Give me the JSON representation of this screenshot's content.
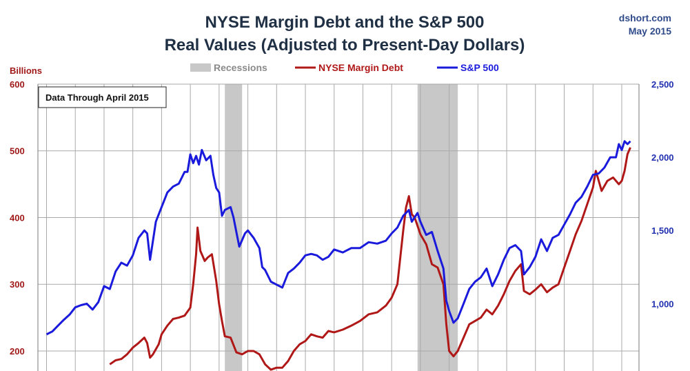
{
  "header": {
    "title_line1": "NYSE Margin Debt and the S&P 500",
    "title_line2": "Real Values (Adjusted to Present-Day Dollars)",
    "source": "dshort.com",
    "date": "May 2015"
  },
  "note": "Data Through April 2015",
  "colors": {
    "margin_debt": "#b01818",
    "sp500": "#1a1adc",
    "recession": "#c8c8c8",
    "grid": "#a9a9a9"
  },
  "chart_data": {
    "type": "line",
    "xlim": [
      1994.7,
      2015.6
    ],
    "left_axis": {
      "label": "Billions",
      "ylim": [
        170,
        600
      ],
      "ticks": [
        "200",
        "300",
        "400",
        "500",
        "600"
      ],
      "tick_values": [
        200,
        300,
        400,
        500,
        600
      ]
    },
    "right_axis": {
      "ylim": [
        540,
        2500
      ],
      "ticks": [
        "1,000",
        "1,500",
        "2,000",
        "2,500"
      ],
      "tick_values": [
        1000,
        1500,
        2000,
        2500
      ]
    },
    "grid": true,
    "legend": {
      "placement": "top-center",
      "entries": [
        "Recessions",
        "NYSE Margin Debt",
        "S&P 500"
      ]
    },
    "recessions": [
      [
        2001.2,
        2001.8
      ],
      [
        2007.9,
        2009.3
      ]
    ],
    "series": [
      {
        "name": "NYSE Margin Debt",
        "axis": "left",
        "points": [
          [
            1997.2,
            180
          ],
          [
            1997.4,
            186
          ],
          [
            1997.6,
            188
          ],
          [
            1997.8,
            195
          ],
          [
            1998.0,
            205
          ],
          [
            1998.2,
            212
          ],
          [
            1998.4,
            220
          ],
          [
            1998.5,
            212
          ],
          [
            1998.6,
            190
          ],
          [
            1998.7,
            195
          ],
          [
            1998.9,
            210
          ],
          [
            1999.0,
            225
          ],
          [
            1999.2,
            238
          ],
          [
            1999.4,
            248
          ],
          [
            1999.6,
            250
          ],
          [
            1999.8,
            253
          ],
          [
            2000.0,
            265
          ],
          [
            2000.1,
            300
          ],
          [
            2000.2,
            345
          ],
          [
            2000.25,
            385
          ],
          [
            2000.35,
            350
          ],
          [
            2000.5,
            335
          ],
          [
            2000.6,
            340
          ],
          [
            2000.75,
            345
          ],
          [
            2000.9,
            305
          ],
          [
            2001.0,
            270
          ],
          [
            2001.1,
            245
          ],
          [
            2001.2,
            222
          ],
          [
            2001.4,
            220
          ],
          [
            2001.6,
            198
          ],
          [
            2001.8,
            195
          ],
          [
            2002.0,
            200
          ],
          [
            2002.2,
            200
          ],
          [
            2002.4,
            195
          ],
          [
            2002.6,
            180
          ],
          [
            2002.8,
            172
          ],
          [
            2003.0,
            175
          ],
          [
            2003.2,
            175
          ],
          [
            2003.4,
            185
          ],
          [
            2003.6,
            200
          ],
          [
            2003.8,
            210
          ],
          [
            2004.0,
            215
          ],
          [
            2004.2,
            225
          ],
          [
            2004.4,
            222
          ],
          [
            2004.6,
            220
          ],
          [
            2004.8,
            230
          ],
          [
            2005.0,
            228
          ],
          [
            2005.3,
            232
          ],
          [
            2005.6,
            238
          ],
          [
            2005.9,
            245
          ],
          [
            2006.2,
            255
          ],
          [
            2006.5,
            258
          ],
          [
            2006.8,
            268
          ],
          [
            2007.0,
            280
          ],
          [
            2007.2,
            300
          ],
          [
            2007.3,
            340
          ],
          [
            2007.4,
            380
          ],
          [
            2007.5,
            415
          ],
          [
            2007.6,
            432
          ],
          [
            2007.7,
            405
          ],
          [
            2007.8,
            400
          ],
          [
            2008.0,
            375
          ],
          [
            2008.2,
            360
          ],
          [
            2008.4,
            330
          ],
          [
            2008.6,
            325
          ],
          [
            2008.8,
            300
          ],
          [
            2008.9,
            240
          ],
          [
            2009.0,
            200
          ],
          [
            2009.15,
            192
          ],
          [
            2009.3,
            200
          ],
          [
            2009.5,
            220
          ],
          [
            2009.7,
            240
          ],
          [
            2009.9,
            245
          ],
          [
            2010.1,
            250
          ],
          [
            2010.3,
            262
          ],
          [
            2010.5,
            255
          ],
          [
            2010.7,
            268
          ],
          [
            2010.9,
            285
          ],
          [
            2011.1,
            305
          ],
          [
            2011.3,
            320
          ],
          [
            2011.5,
            330
          ],
          [
            2011.6,
            290
          ],
          [
            2011.8,
            285
          ],
          [
            2012.0,
            292
          ],
          [
            2012.2,
            300
          ],
          [
            2012.4,
            288
          ],
          [
            2012.6,
            295
          ],
          [
            2012.8,
            300
          ],
          [
            2013.0,
            325
          ],
          [
            2013.2,
            350
          ],
          [
            2013.4,
            375
          ],
          [
            2013.6,
            395
          ],
          [
            2013.8,
            420
          ],
          [
            2014.0,
            445
          ],
          [
            2014.1,
            470
          ],
          [
            2014.3,
            440
          ],
          [
            2014.5,
            455
          ],
          [
            2014.7,
            460
          ],
          [
            2014.9,
            450
          ],
          [
            2015.0,
            455
          ],
          [
            2015.1,
            470
          ],
          [
            2015.2,
            495
          ],
          [
            2015.3,
            505
          ]
        ]
      },
      {
        "name": "S&P 500",
        "axis": "right",
        "points": [
          [
            1995.0,
            790
          ],
          [
            1995.2,
            810
          ],
          [
            1995.4,
            850
          ],
          [
            1995.6,
            890
          ],
          [
            1995.8,
            925
          ],
          [
            1996.0,
            975
          ],
          [
            1996.2,
            990
          ],
          [
            1996.4,
            1000
          ],
          [
            1996.6,
            960
          ],
          [
            1996.8,
            1010
          ],
          [
            1997.0,
            1120
          ],
          [
            1997.2,
            1100
          ],
          [
            1997.4,
            1220
          ],
          [
            1997.6,
            1280
          ],
          [
            1997.8,
            1260
          ],
          [
            1998.0,
            1330
          ],
          [
            1998.2,
            1450
          ],
          [
            1998.4,
            1500
          ],
          [
            1998.5,
            1480
          ],
          [
            1998.6,
            1300
          ],
          [
            1998.7,
            1430
          ],
          [
            1998.8,
            1560
          ],
          [
            1999.0,
            1660
          ],
          [
            1999.2,
            1760
          ],
          [
            1999.4,
            1800
          ],
          [
            1999.6,
            1820
          ],
          [
            1999.8,
            1900
          ],
          [
            1999.9,
            1900
          ],
          [
            2000.0,
            2020
          ],
          [
            2000.1,
            1960
          ],
          [
            2000.2,
            2010
          ],
          [
            2000.3,
            1950
          ],
          [
            2000.4,
            2050
          ],
          [
            2000.55,
            1980
          ],
          [
            2000.7,
            2010
          ],
          [
            2000.8,
            1880
          ],
          [
            2000.9,
            1790
          ],
          [
            2001.0,
            1760
          ],
          [
            2001.1,
            1600
          ],
          [
            2001.2,
            1640
          ],
          [
            2001.4,
            1660
          ],
          [
            2001.5,
            1590
          ],
          [
            2001.6,
            1490
          ],
          [
            2001.7,
            1390
          ],
          [
            2001.9,
            1480
          ],
          [
            2002.0,
            1500
          ],
          [
            2002.2,
            1450
          ],
          [
            2002.4,
            1380
          ],
          [
            2002.5,
            1250
          ],
          [
            2002.6,
            1230
          ],
          [
            2002.8,
            1150
          ],
          [
            2003.0,
            1130
          ],
          [
            2003.2,
            1110
          ],
          [
            2003.4,
            1210
          ],
          [
            2003.6,
            1240
          ],
          [
            2003.8,
            1280
          ],
          [
            2004.0,
            1330
          ],
          [
            2004.2,
            1340
          ],
          [
            2004.4,
            1330
          ],
          [
            2004.6,
            1300
          ],
          [
            2004.8,
            1320
          ],
          [
            2005.0,
            1370
          ],
          [
            2005.3,
            1350
          ],
          [
            2005.6,
            1380
          ],
          [
            2005.9,
            1380
          ],
          [
            2006.2,
            1420
          ],
          [
            2006.5,
            1410
          ],
          [
            2006.8,
            1430
          ],
          [
            2007.0,
            1480
          ],
          [
            2007.2,
            1520
          ],
          [
            2007.4,
            1600
          ],
          [
            2007.6,
            1640
          ],
          [
            2007.7,
            1560
          ],
          [
            2007.9,
            1620
          ],
          [
            2008.0,
            1560
          ],
          [
            2008.2,
            1470
          ],
          [
            2008.4,
            1490
          ],
          [
            2008.6,
            1360
          ],
          [
            2008.8,
            1240
          ],
          [
            2008.9,
            1020
          ],
          [
            2009.0,
            950
          ],
          [
            2009.15,
            870
          ],
          [
            2009.3,
            900
          ],
          [
            2009.5,
            1000
          ],
          [
            2009.7,
            1100
          ],
          [
            2009.9,
            1150
          ],
          [
            2010.1,
            1180
          ],
          [
            2010.3,
            1240
          ],
          [
            2010.5,
            1120
          ],
          [
            2010.7,
            1200
          ],
          [
            2010.9,
            1300
          ],
          [
            2011.1,
            1380
          ],
          [
            2011.3,
            1400
          ],
          [
            2011.5,
            1360
          ],
          [
            2011.6,
            1200
          ],
          [
            2011.8,
            1250
          ],
          [
            2012.0,
            1320
          ],
          [
            2012.2,
            1440
          ],
          [
            2012.4,
            1360
          ],
          [
            2012.6,
            1450
          ],
          [
            2012.8,
            1470
          ],
          [
            2013.0,
            1540
          ],
          [
            2013.2,
            1610
          ],
          [
            2013.4,
            1690
          ],
          [
            2013.6,
            1730
          ],
          [
            2013.8,
            1800
          ],
          [
            2014.0,
            1880
          ],
          [
            2014.2,
            1890
          ],
          [
            2014.4,
            1930
          ],
          [
            2014.6,
            2000
          ],
          [
            2014.8,
            2000
          ],
          [
            2014.9,
            2090
          ],
          [
            2015.0,
            2050
          ],
          [
            2015.1,
            2110
          ],
          [
            2015.2,
            2090
          ],
          [
            2015.3,
            2110
          ]
        ]
      }
    ]
  }
}
